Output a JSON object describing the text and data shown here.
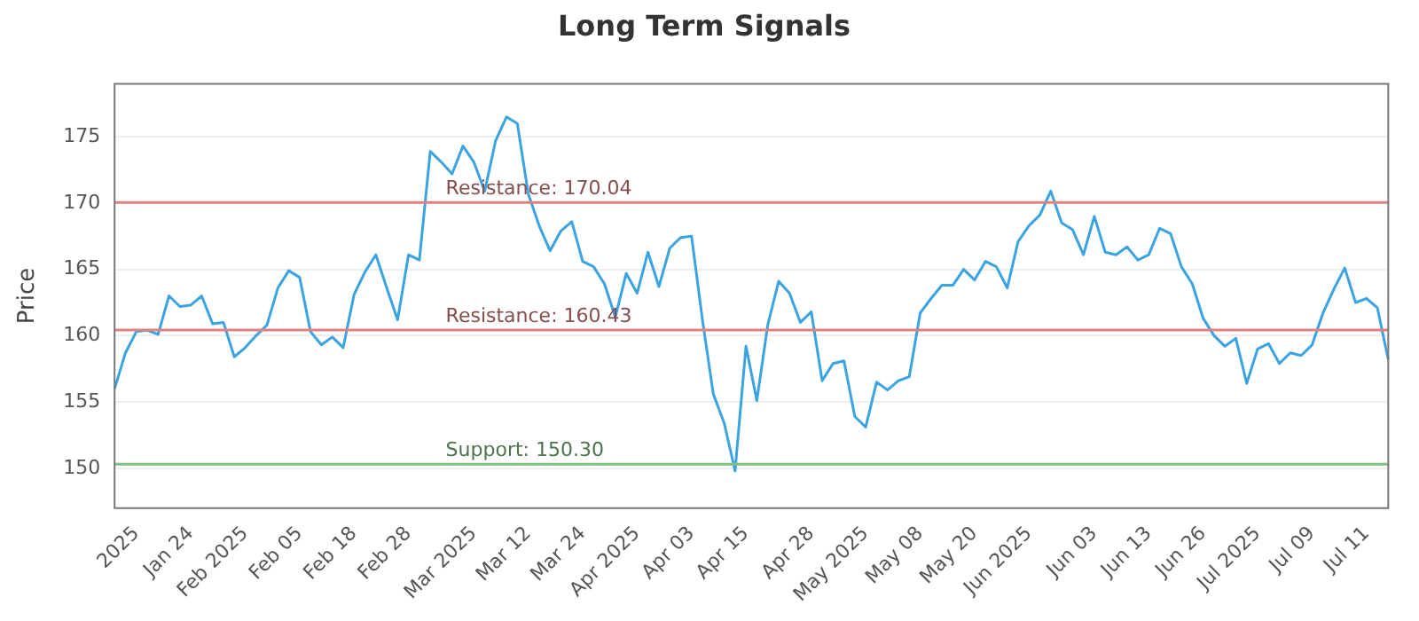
{
  "chart_data": {
    "type": "line",
    "title": "Long Term Signals",
    "ylabel": "Price",
    "categories": [
      null,
      null,
      "2025",
      null,
      null,
      null,
      null,
      "Jan 24",
      null,
      null,
      null,
      null,
      "Feb 2025",
      null,
      null,
      null,
      null,
      "Feb 05",
      null,
      null,
      null,
      null,
      "Feb 18",
      null,
      null,
      null,
      null,
      "Feb 28",
      null,
      null,
      null,
      null,
      null,
      "Mar 2025",
      null,
      null,
      null,
      null,
      "Mar 12",
      null,
      null,
      null,
      null,
      "Mar 24",
      null,
      null,
      null,
      null,
      "Apr 2025",
      null,
      null,
      null,
      null,
      "Apr 03",
      null,
      null,
      null,
      null,
      "Apr 15",
      null,
      null,
      null,
      null,
      null,
      "Apr 28",
      null,
      null,
      null,
      null,
      "May 2025",
      null,
      null,
      null,
      null,
      "May 08",
      null,
      null,
      null,
      null,
      "May 20",
      null,
      null,
      null,
      null,
      "Jun 2025",
      null,
      null,
      null,
      null,
      null,
      "Jun 03",
      null,
      null,
      null,
      null,
      "Jun 13",
      null,
      null,
      null,
      null,
      "Jun 26",
      null,
      null,
      null,
      null,
      "Jul 2025",
      null,
      null,
      null,
      null,
      "Jul 09",
      null,
      null,
      null,
      null,
      "Jul 11",
      null,
      null
    ],
    "series": [
      {
        "color": "#3aa3e0",
        "values": [
          156.0,
          158.7,
          160.3,
          160.4,
          160.1,
          163.0,
          162.2,
          162.3,
          163.0,
          160.9,
          161.0,
          158.4,
          159.1,
          160.0,
          160.8,
          163.6,
          164.9,
          164.4,
          160.3,
          159.3,
          159.9,
          159.1,
          163.1,
          164.8,
          166.1,
          163.6,
          161.2,
          166.1,
          165.7,
          173.9,
          173.1,
          172.2,
          174.3,
          173.1,
          170.9,
          174.7,
          176.5,
          176.0,
          170.7,
          168.3,
          166.4,
          167.9,
          168.6,
          165.6,
          165.2,
          163.9,
          161.4,
          164.7,
          163.2,
          166.3,
          163.7,
          166.6,
          167.4,
          167.5,
          161.2,
          155.6,
          153.4,
          149.8,
          159.2,
          155.1,
          160.8,
          164.1,
          163.2,
          161.0,
          161.8,
          156.6,
          157.9,
          158.1,
          153.9,
          153.1,
          156.5,
          155.9,
          156.6,
          156.9,
          161.7,
          162.8,
          163.8,
          163.8,
          165.0,
          164.2,
          165.6,
          165.2,
          163.6,
          167.1,
          168.3,
          169.1,
          170.9,
          168.5,
          168.0,
          166.1,
          169.0,
          166.3,
          166.1,
          166.7,
          165.7,
          166.1,
          168.1,
          167.7,
          165.2,
          163.9,
          161.3,
          160.0,
          159.2,
          159.8,
          156.4,
          159.0,
          159.4,
          157.9,
          158.7,
          158.5,
          159.3,
          161.7,
          163.5,
          165.1,
          162.5,
          162.8,
          162.1,
          158.2
        ]
      }
    ],
    "ylim": [
      147,
      179
    ],
    "yticks": [
      150,
      155,
      160,
      165,
      170,
      175
    ],
    "grid": "y",
    "marker": "none",
    "line_style": "solid",
    "legend": false,
    "ref_lines": [
      {
        "axis": "y",
        "value": 170.04,
        "label": "Resistance: 170.04",
        "color": "#e08080"
      },
      {
        "axis": "y",
        "value": 160.43,
        "label": "Resistance: 160.43",
        "color": "#e08080"
      },
      {
        "axis": "y",
        "value": 150.3,
        "label": "Support: 150.30",
        "color": "#80c080"
      }
    ]
  }
}
